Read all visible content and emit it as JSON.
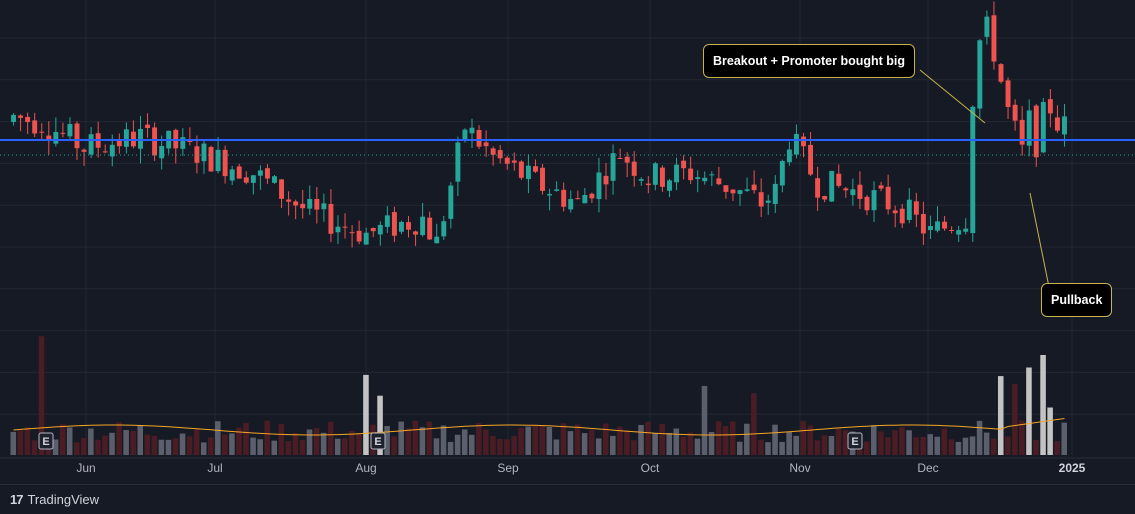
{
  "chart_data": {
    "type": "candlestick",
    "x_labels": [
      "Jun",
      "Jul",
      "Aug",
      "Sep",
      "Oct",
      "Nov",
      "Dec",
      "2025"
    ],
    "resistance_level": 100,
    "price_ylim": [
      55,
      120
    ],
    "volume_ylim": [
      0,
      100
    ],
    "earnings_markers": [
      "E",
      "E",
      "E"
    ],
    "annotations": [
      "Breakout + Promoter bought big",
      "Pullback"
    ],
    "colors": {
      "up": "#26a69a",
      "down": "#ef5350",
      "resistance": "#2962ff",
      "volume_ma": "#f6a623",
      "volume_up": "#5b5f6b",
      "volume_down": "#4a1c24",
      "volume_spike": "#c3c3c3"
    }
  },
  "footer": {
    "brand": "TradingView",
    "logo": "17"
  }
}
